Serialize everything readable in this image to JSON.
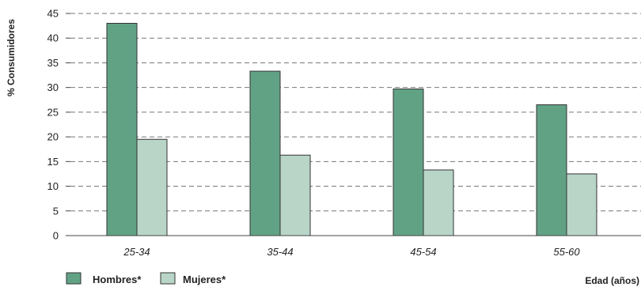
{
  "chart_data": {
    "type": "bar",
    "categories": [
      "25-34",
      "35-44",
      "45-54",
      "55-60"
    ],
    "series": [
      {
        "name": "Hombres*",
        "color": "#61a285",
        "values": [
          43,
          33.3,
          29.7,
          26.5
        ]
      },
      {
        "name": "Mujeres*",
        "color": "#b8d5c8",
        "values": [
          19.5,
          16.3,
          13.3,
          12.5
        ]
      }
    ],
    "ylabel": "% Consumidores",
    "xlabel": "Edad (años)",
    "ylim": [
      0,
      45
    ],
    "yticks": [
      0,
      5,
      10,
      15,
      20,
      25,
      30,
      35,
      40,
      45
    ],
    "grid": true,
    "legend_position": "bottom-left"
  }
}
